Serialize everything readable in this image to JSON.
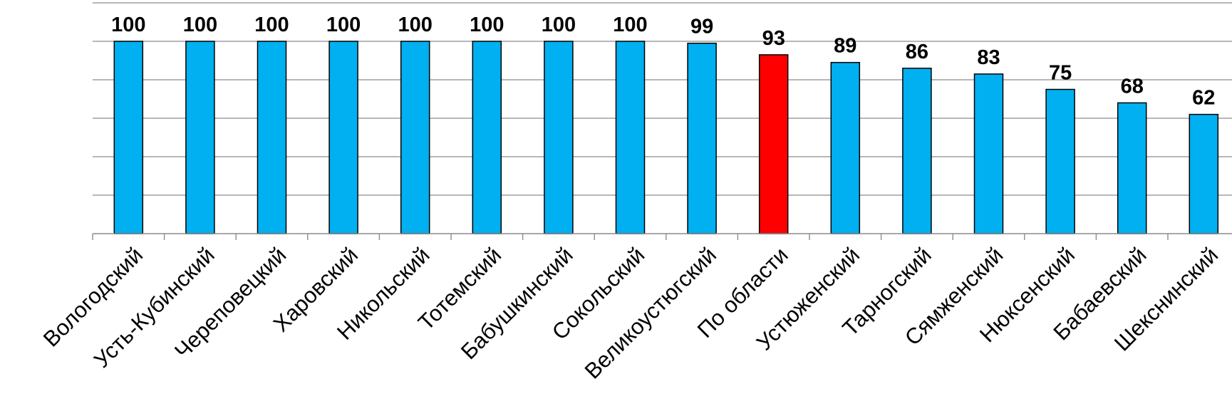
{
  "chart_data": {
    "type": "bar",
    "categories": [
      "Вологодский",
      "Усть-Кубинский",
      "Череповецкий",
      "Харовский",
      "Никольский",
      "Тотемский",
      "Бабушкинский",
      "Сокольский",
      "Великоустюгский",
      "По области",
      "Устюженский",
      "Тарногский",
      "Сямженский",
      "Нюксенский",
      "Бабаевский",
      "Шекснинский"
    ],
    "values": [
      100,
      100,
      100,
      100,
      100,
      100,
      100,
      100,
      99,
      93,
      89,
      86,
      83,
      75,
      68,
      62
    ],
    "highlight_index": 9,
    "colors": {
      "bar": "#00b0f0",
      "highlight": "#ff0000"
    },
    "ylim": [
      0,
      120
    ],
    "grid": true,
    "legend": "none"
  }
}
